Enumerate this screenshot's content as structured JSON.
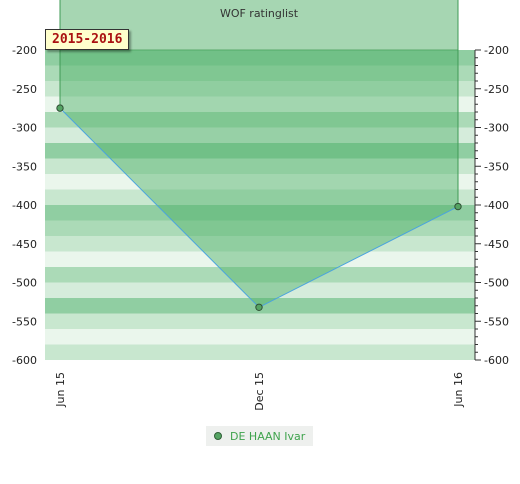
{
  "chart_data": {
    "type": "area",
    "title": "WOF ratinglist",
    "badge": "2015-2016",
    "x_labels": [
      "Jun 15",
      "Dec 15",
      "Jun 16"
    ],
    "series": [
      {
        "name": "DE HAAN Ivar",
        "values": [
          -275,
          -532,
          -402
        ],
        "color": "#55a463"
      }
    ],
    "ylim": [
      -600,
      -200
    ],
    "y_ticks": [
      -200,
      -250,
      -300,
      -350,
      -400,
      -450,
      -500,
      -550,
      -600
    ],
    "grid": true,
    "legend": "bottom-center"
  }
}
